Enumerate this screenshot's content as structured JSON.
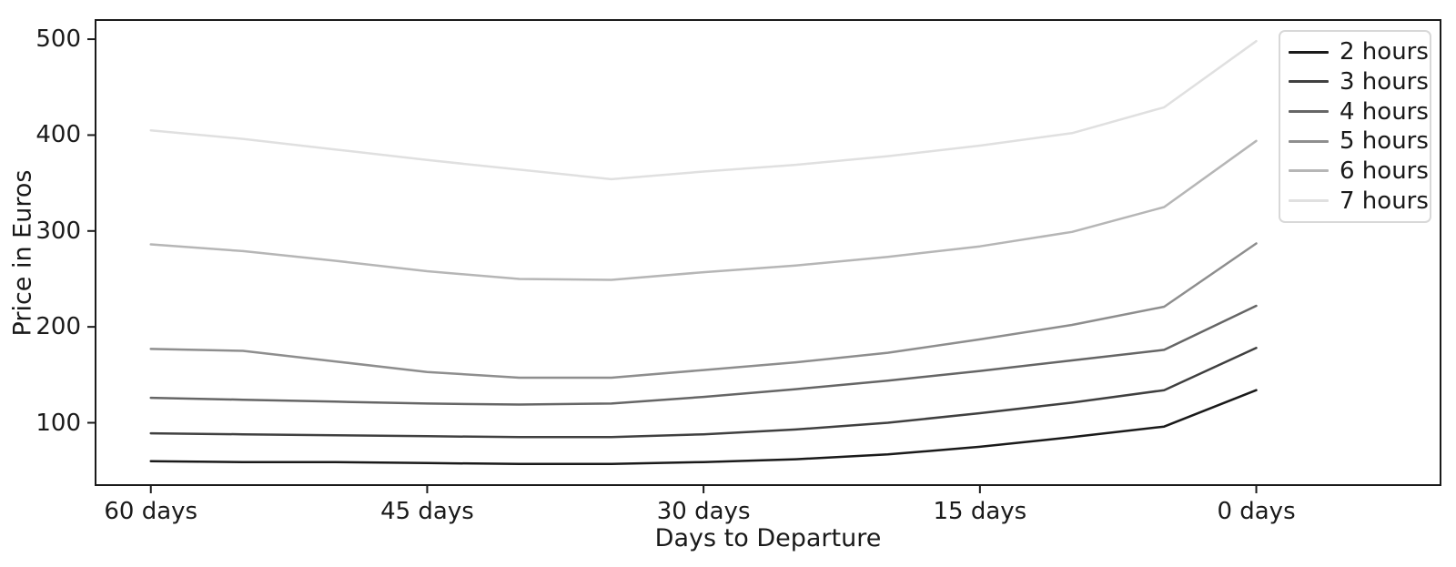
{
  "figure": {
    "background": "#ffffff",
    "axis_color": "#1a1a1a"
  },
  "chart_data": {
    "type": "line",
    "title": "",
    "xlabel": "Days to Departure",
    "ylabel": "Price in Euros",
    "grid": false,
    "x_axis_inverted": true,
    "x_unit": "days to departure",
    "x": [
      60,
      55,
      50,
      45,
      40,
      35,
      30,
      25,
      20,
      15,
      10,
      5,
      0
    ],
    "x_tick_values": [
      60,
      45,
      30,
      15,
      0
    ],
    "x_tick_labels": [
      "60 days",
      "45 days",
      "30 days",
      "15 days",
      "0 days"
    ],
    "y_tick_values": [
      100,
      200,
      300,
      400,
      500
    ],
    "y_tick_labels": [
      "100",
      "200",
      "300",
      "400",
      "500"
    ],
    "xlim": [
      63,
      -10
    ],
    "ylim": [
      35,
      520
    ],
    "legend": {
      "position": "upper right",
      "border_color": "#d8d8d8",
      "background": "#ffffff"
    },
    "series": [
      {
        "name": "2 hours",
        "color": "#1a1a1a",
        "values": [
          60,
          59,
          59,
          58,
          57,
          57,
          59,
          62,
          67,
          75,
          85,
          96,
          134
        ]
      },
      {
        "name": "3 hours",
        "color": "#404040",
        "values": [
          89,
          88,
          87,
          86,
          85,
          85,
          88,
          93,
          100,
          110,
          121,
          134,
          178
        ]
      },
      {
        "name": "4 hours",
        "color": "#666666",
        "values": [
          126,
          124,
          122,
          120,
          119,
          120,
          127,
          135,
          144,
          154,
          165,
          176,
          222
        ]
      },
      {
        "name": "5 hours",
        "color": "#8e8e8e",
        "values": [
          177,
          175,
          164,
          153,
          147,
          147,
          155,
          163,
          173,
          187,
          202,
          221,
          287
        ]
      },
      {
        "name": "6 hours",
        "color": "#b6b6b6",
        "values": [
          286,
          279,
          269,
          258,
          250,
          249,
          257,
          264,
          273,
          284,
          299,
          325,
          394
        ]
      },
      {
        "name": "7 hours",
        "color": "#e0e0e0",
        "values": [
          405,
          396,
          385,
          374,
          364,
          354,
          362,
          369,
          378,
          389,
          402,
          429,
          498
        ]
      }
    ]
  }
}
